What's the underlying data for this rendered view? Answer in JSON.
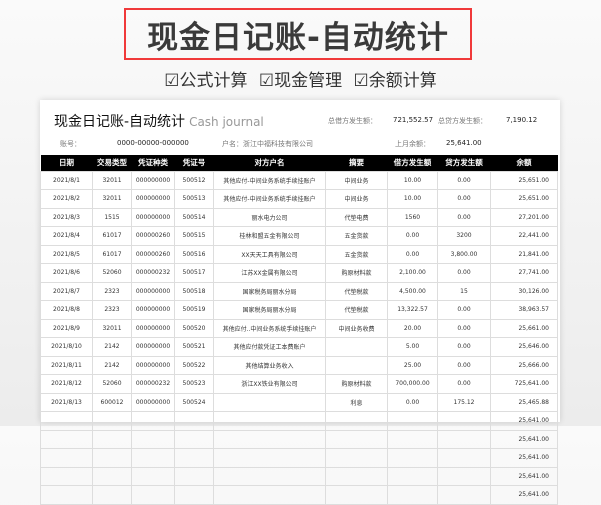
{
  "banner": {
    "title": "现金日记账-自动统计",
    "features": [
      "☑公式计算",
      "☑现金管理",
      "☑余额计算"
    ]
  },
  "sheet": {
    "title": "现金日记账-自动统计",
    "subtitle": "Cash journal",
    "total_debit_label": "总借方发生额：",
    "total_debit": "721,552.57",
    "total_credit_label": "总贷方发生额：",
    "total_credit": "7,190.12",
    "account_label": "账号：",
    "account": "0000-00000-000000",
    "holder": "户名：浙江中福科技有限公司",
    "last_balance_label": "上月余额：",
    "last_balance": "25,641.00"
  },
  "columns": [
    "日期",
    "交易类型",
    "凭证种类",
    "凭证号",
    "对方户名",
    "摘要",
    "借方发生额",
    "贷方发生额",
    "余额"
  ],
  "rows": [
    [
      "2021/8/1",
      "32011",
      "000000000",
      "500512",
      "其他应付-中间业务系统手续挂账户",
      "中间业务",
      "10.00",
      "0.00",
      "25,651.00"
    ],
    [
      "2021/8/2",
      "32011",
      "000000000",
      "500513",
      "其他应付-中间业务系统手续挂账户",
      "中间业务",
      "10.00",
      "0.00",
      "25,651.00"
    ],
    [
      "2021/8/3",
      "1515",
      "000000000",
      "500514",
      "丽水电力公司",
      "代垫电费",
      "1560",
      "0.00",
      "27,201.00"
    ],
    [
      "2021/8/4",
      "61017",
      "000000260",
      "500515",
      "桂林和盟五金有限公司",
      "五金货款",
      "0.00",
      "3200",
      "22,441.00"
    ],
    [
      "2021/8/5",
      "61017",
      "000000260",
      "500516",
      "XX天天工具有限公司",
      "五金货款",
      "0.00",
      "3,800.00",
      "21,841.00"
    ],
    [
      "2021/8/6",
      "52060",
      "000000232",
      "500517",
      "江苏XX金属有限公司",
      "购原材料款",
      "2,100.00",
      "0.00",
      "27,741.00"
    ],
    [
      "2021/8/7",
      "2323",
      "000000000",
      "500518",
      "国家税务局丽水分局",
      "代垫税款",
      "4,500.00",
      "15",
      "30,126.00"
    ],
    [
      "2021/8/8",
      "2323",
      "000000000",
      "500519",
      "国家税务局丽水分局",
      "代垫税款",
      "13,322.57",
      "0.00",
      "38,963.57"
    ],
    [
      "2021/8/9",
      "32011",
      "000000000",
      "500520",
      "其他应付..中间业务系统手续挂账户",
      "中间业务收费",
      "20.00",
      "0.00",
      "25,661.00"
    ],
    [
      "2021/8/10",
      "2142",
      "000000000",
      "500521",
      "其他应付款凭证工本费账户",
      "",
      "5.00",
      "0.00",
      "25,646.00"
    ],
    [
      "2021/8/11",
      "2142",
      "000000000",
      "500522",
      "其他结算业务收入",
      "",
      "25.00",
      "0.00",
      "25,666.00"
    ],
    [
      "2021/8/12",
      "52060",
      "000000232",
      "500523",
      "浙江XX铁业有限公司",
      "购原材料款",
      "700,000.00",
      "0.00",
      "725,641.00"
    ],
    [
      "2021/8/13",
      "600012",
      "000000000",
      "500524",
      "",
      "利息",
      "0.00",
      "175.12",
      "25,465.88"
    ],
    [
      "",
      "",
      "",
      "",
      "",
      "",
      "",
      "",
      "25,641.00"
    ],
    [
      "",
      "",
      "",
      "",
      "",
      "",
      "",
      "",
      "25,641.00"
    ],
    [
      "",
      "",
      "",
      "",
      "",
      "",
      "",
      "",
      "25,641.00"
    ],
    [
      "",
      "",
      "",
      "",
      "",
      "",
      "",
      "",
      "25,641.00"
    ],
    [
      "",
      "",
      "",
      "",
      "",
      "",
      "",
      "",
      "25,641.00"
    ]
  ]
}
